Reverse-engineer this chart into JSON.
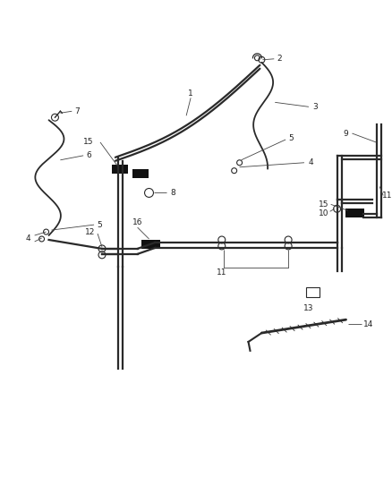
{
  "background_color": "#ffffff",
  "line_color": "#2a2a2a",
  "label_color": "#222222",
  "clip_color": "#111111",
  "figure_width": 4.38,
  "figure_height": 5.33,
  "dpi": 100,
  "lw_main": 1.6,
  "lw_flex": 1.3,
  "lw_leader": 0.6,
  "label_fontsize": 6.5
}
